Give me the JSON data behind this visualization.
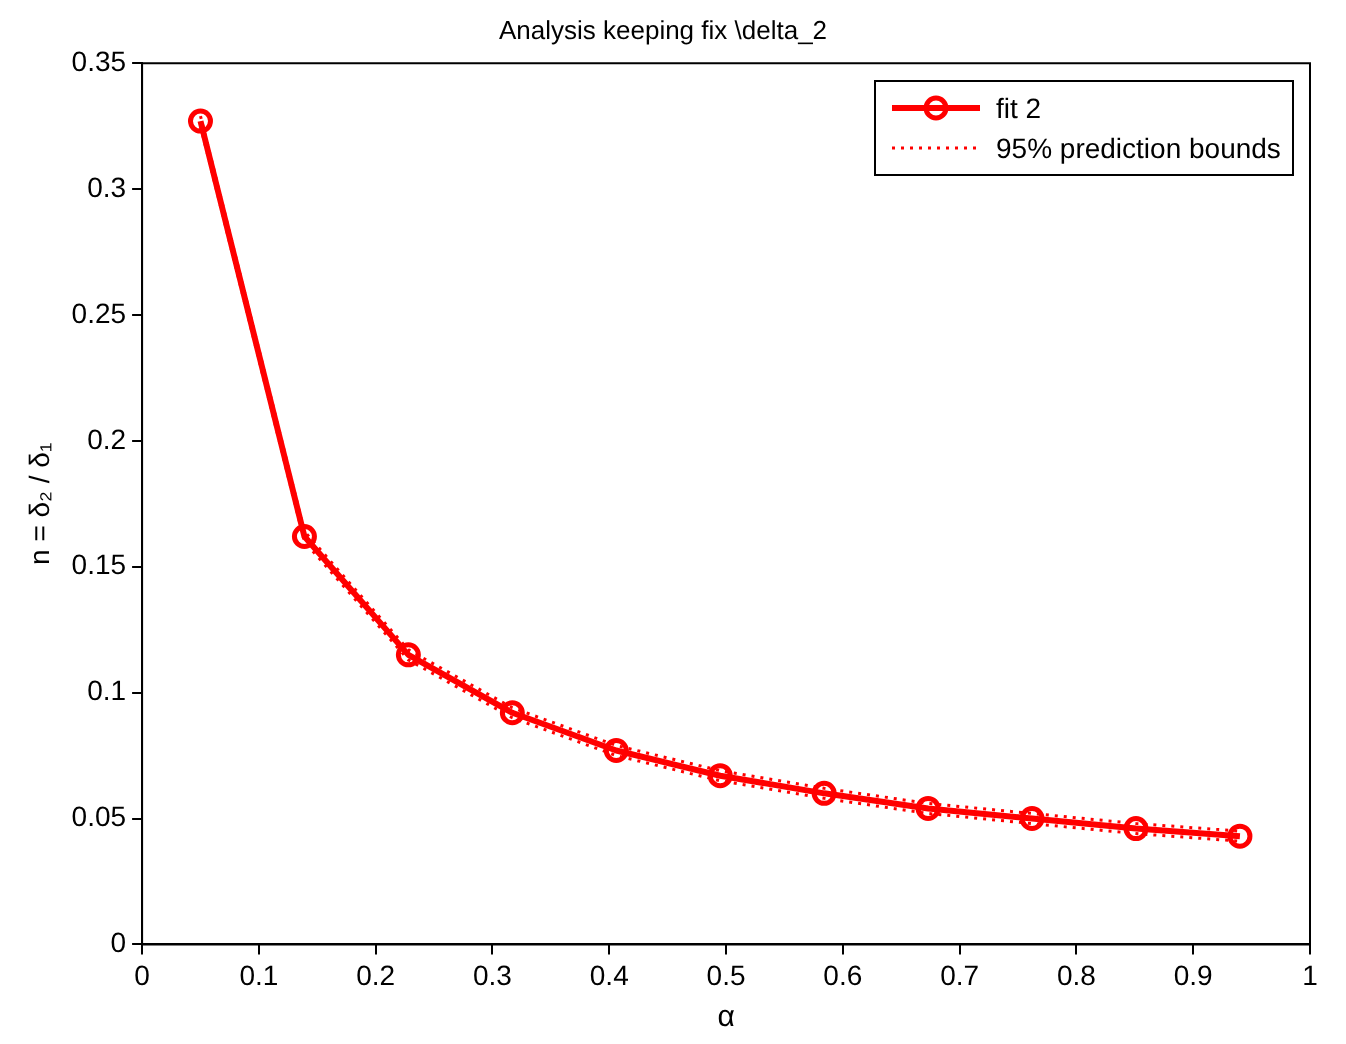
{
  "chart_data": {
    "type": "line",
    "title": "Analysis keeping fix \\delta_2",
    "xlabel": "α",
    "ylabel": "n = δ₂ / δ₁",
    "x": [
      0.05,
      0.139,
      0.228,
      0.317,
      0.406,
      0.495,
      0.584,
      0.673,
      0.762,
      0.851,
      0.94
    ],
    "series": [
      {
        "name": "fit 2",
        "color": "#ff0000",
        "marker": "circle",
        "line_style": "solid",
        "values": [
          0.327,
          0.162,
          0.115,
          0.092,
          0.077,
          0.067,
          0.06,
          0.054,
          0.05,
          0.046,
          0.043
        ]
      },
      {
        "name": "95% prediction bounds",
        "color": "#ff0000",
        "marker": "none",
        "line_style": "dotted",
        "values": [
          0.329,
          0.164,
          0.117,
          0.094,
          0.079,
          0.069,
          0.062,
          0.056,
          0.052,
          0.048,
          0.045
        ]
      },
      {
        "color": "#ff0000",
        "marker": "none",
        "line_style": "dotted",
        "values": [
          0.325,
          0.16,
          0.113,
          0.09,
          0.075,
          0.065,
          0.058,
          0.052,
          0.048,
          0.044,
          0.041
        ]
      }
    ],
    "xlim": [
      0,
      1
    ],
    "xticks": [
      0,
      0.1,
      0.2,
      0.3,
      0.4,
      0.5,
      0.6,
      0.7,
      0.8,
      0.9,
      1
    ],
    "ylim": [
      0,
      0.35
    ],
    "yticks": [
      0,
      0.05,
      0.1,
      0.15,
      0.2,
      0.25,
      0.3,
      0.35
    ],
    "grid": false,
    "legend": "top right"
  }
}
